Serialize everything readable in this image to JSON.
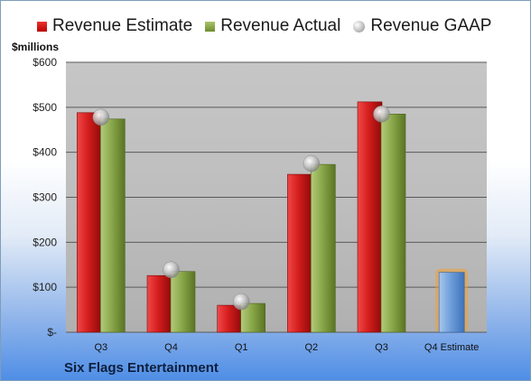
{
  "chart_data": {
    "type": "bar",
    "unit_label": "$millions",
    "company": "Six Flags Entertainment",
    "categories": [
      "Q3",
      "Q4",
      "Q1",
      "Q2",
      "Q3",
      "Q4 Estimate"
    ],
    "series": [
      {
        "name": "Revenue Estimate",
        "kind": "bar",
        "color": "#d71e1e",
        "values": [
          488,
          126,
          60,
          351,
          512,
          null
        ]
      },
      {
        "name": "Revenue Actual",
        "kind": "bar",
        "color": "#8aa84a",
        "values": [
          474,
          135,
          64,
          373,
          485,
          null
        ]
      },
      {
        "name": "Revenue GAAP",
        "kind": "marker",
        "color": "#b5b5b5",
        "values": [
          478,
          139,
          68,
          375,
          485,
          null
        ]
      },
      {
        "name": "Q4 Estimate",
        "kind": "bar-highlight",
        "color": "#6a9bd8",
        "values": [
          null,
          null,
          null,
          null,
          null,
          133
        ]
      }
    ],
    "y_ticks": [
      {
        "value": 600,
        "label": "$600"
      },
      {
        "value": 500,
        "label": "$500"
      },
      {
        "value": 400,
        "label": "$400"
      },
      {
        "value": 300,
        "label": "$300"
      },
      {
        "value": 200,
        "label": "$200"
      },
      {
        "value": 100,
        "label": "$100"
      },
      {
        "value": 0,
        "label": "$-"
      }
    ],
    "ylim": [
      0,
      600
    ],
    "grid": true,
    "legend_position": "top"
  }
}
